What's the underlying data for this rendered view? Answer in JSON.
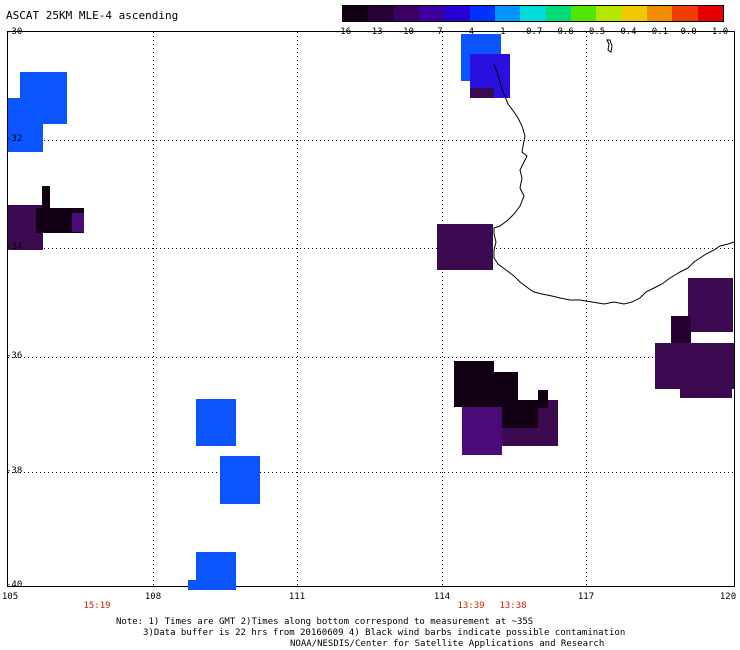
{
  "title": "ASCAT 25KM MLE-4 ascending",
  "colorbar": {
    "ticks": [
      "-16",
      "-13",
      "-10",
      "-7",
      "-4",
      "-1",
      "-0.7",
      "-0.6",
      "-0.5",
      "-0.4",
      "-0.1",
      "0.0",
      "1.0"
    ],
    "colors": [
      "#140014",
      "#280038",
      "#3c0064",
      "#3c00a0",
      "#2800d2",
      "#0032ff",
      "#0096ff",
      "#00dcdc",
      "#00dc78",
      "#50e600",
      "#b4e600",
      "#f0c800",
      "#f08c00",
      "#f03c00",
      "#e60000"
    ]
  },
  "axes": {
    "lat_labels": [
      "-30",
      "-32",
      "-34",
      "-36",
      "-38",
      "-40"
    ],
    "lon_labels": [
      "105",
      "108",
      "111",
      "114",
      "117",
      "120"
    ]
  },
  "time_labels": [
    "15:19",
    "13:39",
    "13:38"
  ],
  "notes": {
    "line1": "Note: 1) Times are GMT 2)Times along bottom correspond to measurement at ~35S",
    "line2": "3)Data buffer is 22 hrs from 20160609 4) Black wind barbs indicate possible contamination",
    "line3": "NOAA/NESDIS/Center for Satellite Applications and Research"
  },
  "colors": {
    "blue": "#0a50ff",
    "dark_purple": "#3c0a50",
    "black_purple": "#140014",
    "purple": "#4a0a78",
    "time_red": "#cc2200"
  }
}
